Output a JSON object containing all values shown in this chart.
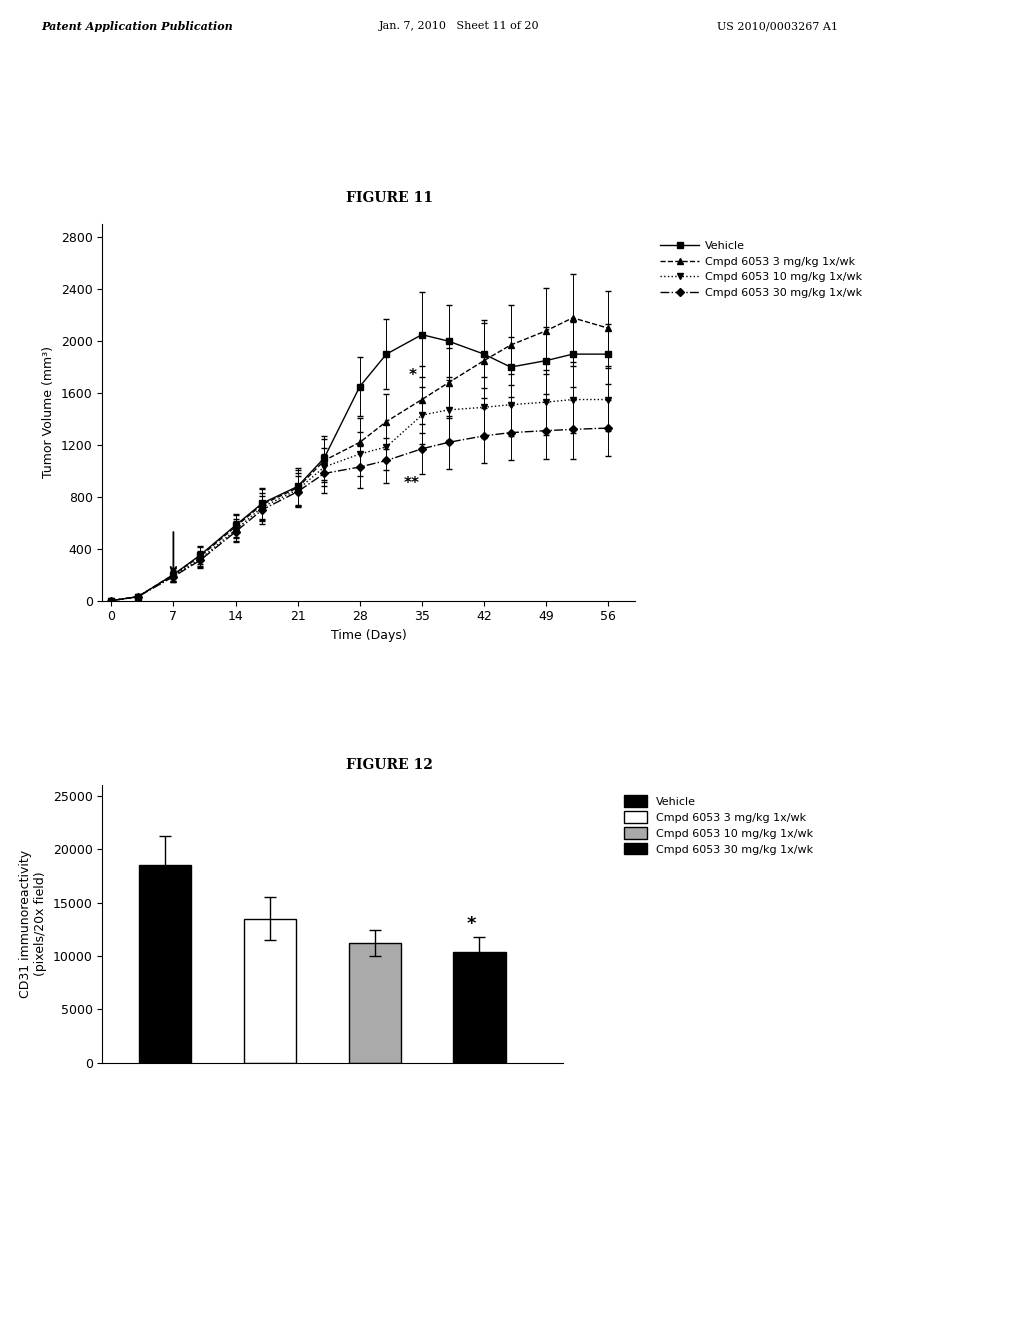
{
  "fig11_title": "FIGURE 11",
  "fig12_title": "FIGURE 12",
  "header_left": "Patent Application Publication",
  "header_mid": "Jan. 7, 2010   Sheet 11 of 20",
  "header_right": "US 2010/0003267 A1",
  "fig11": {
    "xlabel": "Time (Days)",
    "ylabel": "Tumor Volume (mm³)",
    "xlim": [
      -1,
      59
    ],
    "ylim": [
      0,
      2900
    ],
    "xticks": [
      0,
      7,
      14,
      21,
      28,
      35,
      42,
      49,
      56
    ],
    "yticks": [
      0,
      400,
      800,
      1200,
      1600,
      2000,
      2400,
      2800
    ],
    "series": {
      "vehicle": {
        "x": [
          0,
          3,
          7,
          10,
          14,
          17,
          21,
          24,
          28,
          31,
          35,
          38,
          42,
          45,
          49,
          52,
          56
        ],
        "y": [
          0,
          30,
          200,
          350,
          580,
          750,
          880,
          1100,
          1650,
          1900,
          2050,
          2000,
          1900,
          1800,
          1850,
          1900,
          1900
        ],
        "yerr": [
          0,
          0,
          50,
          70,
          90,
          120,
          140,
          170,
          230,
          270,
          330,
          280,
          260,
          230,
          260,
          250,
          230
        ],
        "color": "#000000",
        "linestyle": "-",
        "marker": "s",
        "label": "Vehicle"
      },
      "cmpd3": {
        "x": [
          0,
          3,
          7,
          10,
          14,
          17,
          21,
          24,
          28,
          31,
          35,
          38,
          42,
          45,
          49,
          52,
          56
        ],
        "y": [
          0,
          30,
          200,
          340,
          570,
          740,
          870,
          1080,
          1220,
          1380,
          1550,
          1680,
          1850,
          1970,
          2080,
          2180,
          2100
        ],
        "yerr": [
          0,
          0,
          50,
          70,
          90,
          120,
          140,
          165,
          190,
          210,
          260,
          270,
          290,
          310,
          330,
          340,
          290
        ],
        "color": "#000000",
        "linestyle": "--",
        "marker": "^",
        "label": "Cmpd 6053 3 mg/kg 1x/wk"
      },
      "cmpd10": {
        "x": [
          0,
          3,
          7,
          10,
          14,
          17,
          21,
          24,
          28,
          31,
          35,
          38,
          42,
          45,
          49,
          52,
          56
        ],
        "y": [
          0,
          30,
          190,
          320,
          545,
          720,
          855,
          1030,
          1130,
          1185,
          1430,
          1470,
          1490,
          1510,
          1530,
          1550,
          1550
        ],
        "yerr": [
          0,
          0,
          45,
          60,
          85,
          110,
          125,
          150,
          170,
          180,
          220,
          230,
          235,
          240,
          250,
          255,
          240
        ],
        "color": "#000000",
        "linestyle": ":",
        "marker": "v",
        "label": "Cmpd 6053 10 mg/kg 1x/wk"
      },
      "cmpd30": {
        "x": [
          0,
          3,
          7,
          10,
          14,
          17,
          21,
          24,
          28,
          31,
          35,
          38,
          42,
          45,
          49,
          52,
          56
        ],
        "y": [
          0,
          30,
          185,
          310,
          530,
          700,
          840,
          980,
          1030,
          1080,
          1170,
          1220,
          1270,
          1295,
          1310,
          1320,
          1330
        ],
        "yerr": [
          0,
          0,
          44,
          58,
          82,
          108,
          122,
          148,
          162,
          172,
          193,
          202,
          212,
          215,
          222,
          225,
          215
        ],
        "color": "#000000",
        "linestyle": "-.",
        "marker": "D",
        "label": "Cmpd 6053 30 mg/kg 1x/wk"
      }
    }
  },
  "fig12": {
    "ylabel": "CD31 immunoreactivity\n(pixels/20x field)",
    "xlim": [
      -0.6,
      3.8
    ],
    "ylim": [
      0,
      26000
    ],
    "yticks": [
      0,
      5000,
      10000,
      15000,
      20000,
      25000
    ],
    "values": [
      18500,
      13500,
      11200,
      10400
    ],
    "yerr": [
      2800,
      2000,
      1200,
      1400
    ],
    "bar_colors": [
      "#000000",
      "#ffffff",
      "#aaaaaa",
      "#000000"
    ],
    "bar_edgecolors": [
      "#000000",
      "#000000",
      "#000000",
      "#000000"
    ],
    "bar_hatches": [
      null,
      null,
      null,
      null
    ],
    "star_bar": 3,
    "star_label": "*"
  },
  "bg_color": "#ffffff",
  "text_color": "#000000",
  "font_size": 9,
  "title_font_size": 10
}
